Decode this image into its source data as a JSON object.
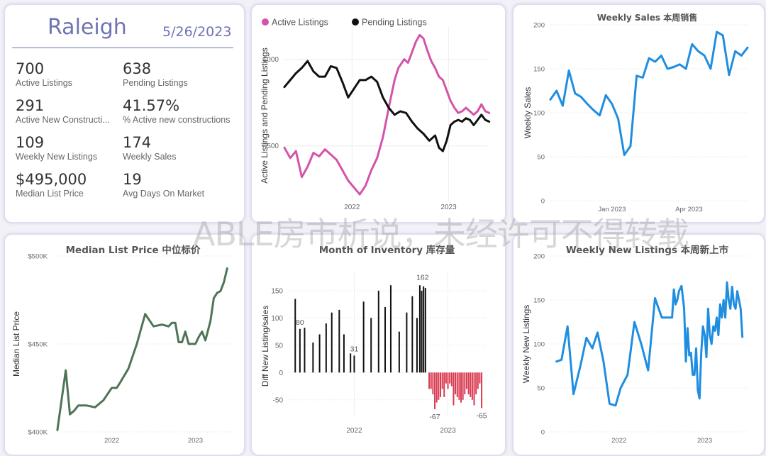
{
  "kpi": {
    "city": "Raleigh",
    "date": "5/26/2023",
    "items": [
      {
        "value": "700",
        "label": "Active Listings"
      },
      {
        "value": "638",
        "label": "Pending Listings"
      },
      {
        "value": "291",
        "label": "Active New Constructi..."
      },
      {
        "value": "41.57%",
        "label": "% Active new constructions"
      },
      {
        "value": "109",
        "label": "Weekly New Listings"
      },
      {
        "value": "174",
        "label": "Weekly Sales"
      },
      {
        "value": "$495,000",
        "label": "Median List Price"
      },
      {
        "value": "19",
        "label": "Avg Days On Market"
      }
    ]
  },
  "watermark": "ABLE房市析说，未经许可不得转载",
  "chart_data": [
    {
      "type": "line",
      "id": "active-pending",
      "title": "",
      "legend": "top-left",
      "ylabel": "Active Listings and Pending Listings",
      "xlabel": "",
      "yticks": [
        500,
        1000
      ],
      "ylim": [
        200,
        1150
      ],
      "xlim": [
        2021.3,
        2023.4
      ],
      "xticks": [
        {
          "x": 2022.0,
          "label": "2022"
        },
        {
          "x": 2023.0,
          "label": "2023"
        }
      ],
      "series": [
        {
          "name": "Active Listings",
          "color": "#d453a9",
          "x": [
            2021.3,
            2021.36,
            2021.42,
            2021.48,
            2021.54,
            2021.6,
            2021.66,
            2021.72,
            2021.78,
            2021.84,
            2021.9,
            2021.96,
            2022.02,
            2022.08,
            2022.14,
            2022.2,
            2022.26,
            2022.32,
            2022.38,
            2022.44,
            2022.48,
            2022.54,
            2022.58,
            2022.62,
            2022.66,
            2022.7,
            2022.74,
            2022.78,
            2022.82,
            2022.86,
            2022.9,
            2022.94,
            2022.98,
            2023.02,
            2023.06,
            2023.1,
            2023.14,
            2023.18,
            2023.22,
            2023.26,
            2023.3,
            2023.34,
            2023.38,
            2023.42
          ],
          "y": [
            490,
            430,
            470,
            320,
            380,
            460,
            440,
            480,
            450,
            420,
            360,
            300,
            260,
            220,
            270,
            360,
            430,
            550,
            720,
            880,
            950,
            1000,
            980,
            1040,
            1100,
            1140,
            1120,
            1050,
            990,
            950,
            900,
            880,
            820,
            760,
            720,
            690,
            700,
            720,
            700,
            680,
            700,
            740,
            700,
            690
          ]
        },
        {
          "name": "Pending Listings",
          "color": "#111111",
          "x": [
            2021.3,
            2021.36,
            2021.42,
            2021.48,
            2021.54,
            2021.6,
            2021.66,
            2021.72,
            2021.78,
            2021.84,
            2021.9,
            2021.96,
            2022.02,
            2022.08,
            2022.14,
            2022.2,
            2022.26,
            2022.32,
            2022.38,
            2022.44,
            2022.5,
            2022.56,
            2022.62,
            2022.68,
            2022.74,
            2022.8,
            2022.86,
            2022.9,
            2022.94,
            2022.98,
            2023.02,
            2023.06,
            2023.1,
            2023.14,
            2023.18,
            2023.22,
            2023.26,
            2023.3,
            2023.34,
            2023.38,
            2023.42
          ],
          "y": [
            840,
            880,
            920,
            950,
            990,
            930,
            900,
            900,
            960,
            950,
            870,
            780,
            830,
            880,
            880,
            900,
            870,
            780,
            720,
            680,
            700,
            690,
            640,
            600,
            570,
            530,
            560,
            490,
            470,
            530,
            620,
            640,
            650,
            640,
            660,
            650,
            620,
            650,
            680,
            650,
            640
          ]
        }
      ]
    },
    {
      "type": "line",
      "id": "weekly-sales",
      "title": "Weekly Sales 本周销售",
      "ylabel": "Weekly Sales",
      "xlabel": "",
      "yticks": [
        0,
        50,
        100,
        150,
        200
      ],
      "ylim": [
        0,
        200
      ],
      "xlim": [
        2022.8,
        2023.44
      ],
      "xticks": [
        {
          "x": 2023.0,
          "label": "Jan 2023"
        },
        {
          "x": 2023.25,
          "label": "Apr 2023"
        }
      ],
      "series": [
        {
          "name": "",
          "color": "#1f8ee0",
          "x": [
            2022.8,
            2022.82,
            2022.84,
            2022.86,
            2022.88,
            2022.9,
            2022.92,
            2022.94,
            2022.96,
            2022.98,
            2023.0,
            2023.02,
            2023.04,
            2023.06,
            2023.08,
            2023.1,
            2023.12,
            2023.14,
            2023.16,
            2023.18,
            2023.2,
            2023.22,
            2023.24,
            2023.26,
            2023.28,
            2023.3,
            2023.32,
            2023.34,
            2023.36,
            2023.38,
            2023.4,
            2023.42,
            2023.44
          ],
          "y": [
            115,
            125,
            108,
            148,
            122,
            118,
            110,
            103,
            97,
            120,
            110,
            93,
            52,
            62,
            142,
            140,
            162,
            158,
            165,
            150,
            152,
            155,
            150,
            178,
            170,
            165,
            150,
            192,
            188,
            143,
            170,
            165,
            174
          ]
        }
      ]
    },
    {
      "type": "line",
      "id": "median-list-price",
      "title": "Median List Price 中位标价",
      "ylabel": "Median List Price",
      "xlabel": "",
      "yticks": [
        {
          "v": 400000,
          "label": "$400K"
        },
        {
          "v": 450000,
          "label": "$450K"
        },
        {
          "v": 500000,
          "label": "$500K"
        }
      ],
      "ylim": [
        400000,
        500000
      ],
      "xlim": [
        2021.3,
        2023.42
      ],
      "xticks": [
        {
          "x": 2022.0,
          "label": "2022"
        },
        {
          "x": 2023.0,
          "label": "2023"
        }
      ],
      "series": [
        {
          "name": "",
          "color": "#4e7457",
          "x": [
            2021.35,
            2021.45,
            2021.5,
            2021.55,
            2021.6,
            2021.7,
            2021.8,
            2021.9,
            2022.0,
            2022.06,
            2022.1,
            2022.2,
            2022.3,
            2022.4,
            2022.5,
            2022.6,
            2022.68,
            2022.72,
            2022.76,
            2022.8,
            2022.84,
            2022.88,
            2022.92,
            2022.96,
            2023.0,
            2023.04,
            2023.08,
            2023.12,
            2023.18,
            2023.22,
            2023.26,
            2023.3,
            2023.34,
            2023.38
          ],
          "y": [
            401000,
            435000,
            410000,
            412000,
            415000,
            415000,
            414000,
            418000,
            425000,
            425000,
            428000,
            436000,
            450000,
            467000,
            460000,
            461000,
            460000,
            462000,
            462000,
            451000,
            451000,
            457000,
            450000,
            450000,
            450000,
            454000,
            457000,
            452000,
            463000,
            476000,
            479000,
            480000,
            485000,
            493000
          ]
        }
      ]
    },
    {
      "type": "bar",
      "id": "month-of-inventory",
      "title": "Month of Inventory 库存量",
      "ylabel": "Diff New Listing/sales",
      "xlabel": "",
      "yticks": [
        -50,
        0,
        50,
        100,
        150
      ],
      "ylim": [
        -75,
        172
      ],
      "xlim": [
        2021.3,
        2023.42
      ],
      "xticks": [
        {
          "x": 2022.0,
          "label": "2022"
        },
        {
          "x": 2023.0,
          "label": "2023"
        }
      ],
      "positive_color": "#111111",
      "negative_color": "#d9384f",
      "data_labels": [
        {
          "x": 2021.42,
          "text": "80"
        },
        {
          "x": 2022.0,
          "text": "31"
        },
        {
          "x": 2022.73,
          "text": "162"
        },
        {
          "x": 2022.86,
          "text": "-67"
        },
        {
          "x": 2023.36,
          "text": "-65"
        }
      ],
      "x": [
        2021.37,
        2021.42,
        2021.47,
        2021.56,
        2021.63,
        2021.7,
        2021.76,
        2021.84,
        2021.89,
        2021.96,
        2022.0,
        2022.1,
        2022.18,
        2022.26,
        2022.33,
        2022.39,
        2022.48,
        2022.56,
        2022.62,
        2022.67,
        2022.7,
        2022.72,
        2022.74,
        2022.76,
        2022.8,
        2022.82,
        2022.84,
        2022.86,
        2022.88,
        2022.9,
        2022.92,
        2022.94,
        2022.96,
        2022.98,
        2023.0,
        2023.02,
        2023.04,
        2023.06,
        2023.08,
        2023.1,
        2023.12,
        2023.14,
        2023.16,
        2023.18,
        2023.2,
        2023.22,
        2023.24,
        2023.26,
        2023.28,
        2023.3,
        2023.32,
        2023.34,
        2023.36
      ],
      "values": [
        135,
        80,
        82,
        55,
        70,
        90,
        110,
        115,
        70,
        35,
        31,
        130,
        100,
        150,
        120,
        160,
        75,
        110,
        140,
        100,
        160,
        150,
        158,
        155,
        -30,
        -30,
        -40,
        -67,
        -55,
        -50,
        -45,
        -30,
        -45,
        -20,
        -30,
        -20,
        -25,
        -60,
        -40,
        -45,
        -50,
        -55,
        -50,
        -40,
        -30,
        -40,
        -45,
        -50,
        -60,
        -40,
        -30,
        -20,
        -65
      ]
    },
    {
      "type": "line",
      "id": "weekly-new-listings",
      "title": "Weekly New Listings 本周新上市",
      "ylabel": "Weekly New Listings",
      "xlabel": "",
      "yticks": [
        0,
        50,
        100,
        150,
        200
      ],
      "ylim": [
        0,
        200
      ],
      "xlim": [
        2021.2,
        2023.5
      ],
      "xticks": [
        {
          "x": 2022.0,
          "label": "2022"
        },
        {
          "x": 2023.0,
          "label": "2023"
        }
      ],
      "series": [
        {
          "name": "",
          "color": "#1f8ee0",
          "x": [
            2021.27,
            2021.33,
            2021.4,
            2021.47,
            2021.55,
            2021.62,
            2021.69,
            2021.75,
            2021.82,
            2021.89,
            2021.96,
            2022.02,
            2022.1,
            2022.18,
            2022.26,
            2022.34,
            2022.42,
            2022.5,
            2022.56,
            2022.62,
            2022.64,
            2022.66,
            2022.68,
            2022.7,
            2022.73,
            2022.76,
            2022.78,
            2022.8,
            2022.82,
            2022.84,
            2022.86,
            2022.88,
            2022.9,
            2022.92,
            2022.94,
            2022.96,
            2022.98,
            2023.0,
            2023.02,
            2023.04,
            2023.06,
            2023.08,
            2023.1,
            2023.12,
            2023.14,
            2023.16,
            2023.18,
            2023.2,
            2023.22,
            2023.24,
            2023.26,
            2023.28,
            2023.3,
            2023.32,
            2023.34,
            2023.36,
            2023.38,
            2023.4,
            2023.42,
            2023.44
          ],
          "y": [
            80,
            82,
            120,
            43,
            75,
            107,
            95,
            113,
            80,
            32,
            30,
            50,
            65,
            125,
            100,
            70,
            152,
            130,
            130,
            130,
            162,
            145,
            150,
            160,
            166,
            140,
            80,
            118,
            87,
            90,
            65,
            65,
            95,
            47,
            38,
            90,
            120,
            110,
            85,
            140,
            110,
            100,
            120,
            115,
            130,
            110,
            145,
            130,
            150,
            130,
            170,
            150,
            140,
            165,
            145,
            140,
            160,
            150,
            140,
            108
          ]
        }
      ]
    }
  ]
}
